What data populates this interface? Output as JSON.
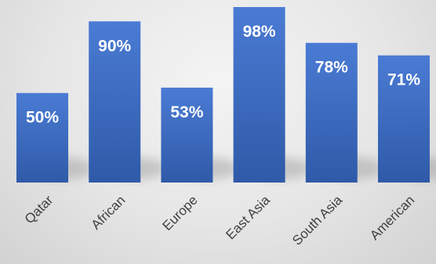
{
  "chart_data": {
    "type": "bar",
    "title": "",
    "xlabel": "",
    "ylabel": "",
    "categories": [
      "Qatar",
      "African",
      "Europe",
      "East Asia",
      "South Asia",
      "American"
    ],
    "values": [
      50,
      90,
      53,
      98,
      78,
      71
    ],
    "data_labels": [
      "50%",
      "90%",
      "53%",
      "98%",
      "78%",
      "71%"
    ],
    "ylim": [
      0,
      100
    ],
    "grid": false,
    "legend": "none",
    "colors": {
      "bar_top": "#4a7bd4",
      "bar_bottom": "#2f5aa8",
      "label_text": "#ffffff",
      "tick_text": "#404040"
    }
  }
}
